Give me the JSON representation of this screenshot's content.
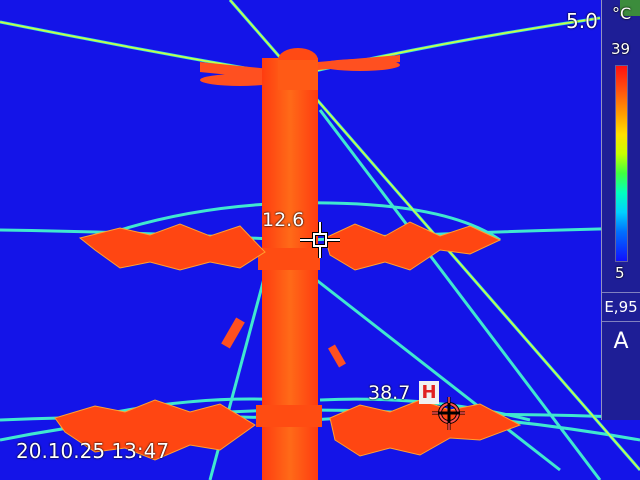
{
  "readouts": {
    "top_value": "5.0",
    "spot1": "12.6",
    "spot2": "38.7",
    "hot_marker": "H"
  },
  "timestamp": "20.10.25 13:47",
  "scale": {
    "unit": "°C",
    "max": "39",
    "min": "5",
    "emissivity": "E,95",
    "mode": "A"
  },
  "colors": {
    "background_cold": "#1414e8",
    "pole_hot": "#ff5a14",
    "wire": "#40e8d0",
    "insulator_warm": "#ff4010"
  },
  "icons": {
    "crosshair_spot": "crosshair-icon",
    "hot_spot": "hotspot-crosshair-icon"
  }
}
